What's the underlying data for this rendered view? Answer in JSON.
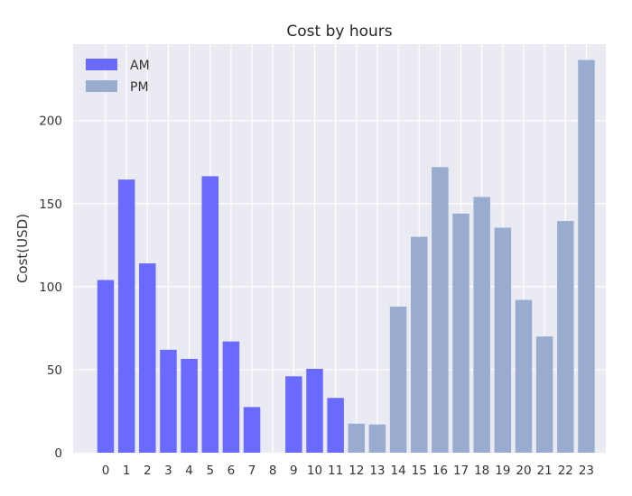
{
  "chart_data": {
    "type": "bar",
    "title": "Cost by hours",
    "xlabel": "",
    "ylabel": "Cost(USD)",
    "ylim": [
      0,
      246
    ],
    "yticks": [
      0,
      50,
      100,
      150,
      200
    ],
    "grid": true,
    "legend_position": "top-left",
    "categories": [
      "0",
      "1",
      "2",
      "3",
      "4",
      "5",
      "6",
      "7",
      "8",
      "9",
      "10",
      "11",
      "12",
      "13",
      "14",
      "15",
      "16",
      "17",
      "18",
      "19",
      "20",
      "21",
      "22",
      "23"
    ],
    "series": [
      {
        "name": "AM",
        "color": "#6a6aff",
        "values": [
          104,
          164.5,
          114,
          62,
          56.5,
          166.5,
          67,
          27.5,
          0,
          46,
          50.5,
          33,
          null,
          null,
          null,
          null,
          null,
          null,
          null,
          null,
          null,
          null,
          null,
          null
        ]
      },
      {
        "name": "PM",
        "color": "#9aabd0",
        "values": [
          null,
          null,
          null,
          null,
          null,
          null,
          null,
          null,
          null,
          null,
          null,
          null,
          17.5,
          17,
          88,
          130,
          172,
          144,
          154,
          135.5,
          92,
          70,
          139.5,
          236.5
        ]
      }
    ]
  }
}
